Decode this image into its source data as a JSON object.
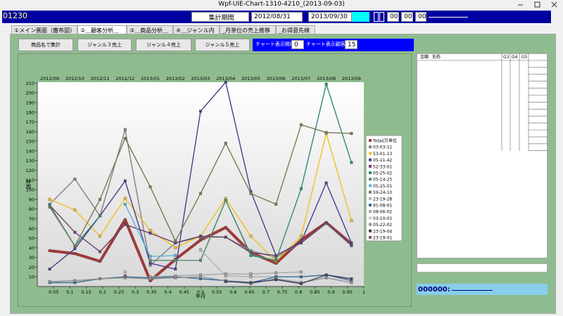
{
  "window": {
    "title": "Wpf-UIE-Chart-1310-4210_(2013-09-03)"
  },
  "header": {
    "code": "01230",
    "period_label": "集計期間",
    "start_date": "2012/08/31",
    "separator": "～",
    "end_date": "2013/09/30",
    "fields": [
      "00",
      "00",
      "00"
    ]
  },
  "tabs": [
    "①メイン画面（撒布図）",
    "②＿顧客分析＿",
    "③＿商品分析＿",
    "④＿ジャンル内訳",
    "_月単位の売上推移",
    "_お得意先検索"
  ],
  "buttons": [
    "商品名で集計",
    "ジャンル３売上",
    "ジャンル４売上",
    "ジャンル５売上"
  ],
  "chart_controls": {
    "start_label": "チャート表示開始",
    "start_value": "0",
    "count_label": "チャート表示顧客数",
    "count_value": "15"
  },
  "chart_data": {
    "type": "line",
    "x_label": "年月",
    "y_label": "金額",
    "x": [
      0.038,
      0.115,
      0.192,
      0.269,
      0.346,
      0.423,
      0.5,
      0.577,
      0.654,
      0.731,
      0.808,
      0.885,
      0.962
    ],
    "top_labels": [
      "2012/09",
      "2012/10",
      "2012/11",
      "2012/12",
      "2013/01",
      "2013/02",
      "2013/03",
      "2013/04",
      "2013/05",
      "2013/06",
      "2013/07",
      "2013/08",
      "2013/09"
    ],
    "xlim": [
      0,
      1
    ],
    "xticks": [
      0.05,
      0.1,
      0.15,
      0.2,
      0.25,
      0.3,
      0.35,
      0.4,
      0.45,
      0.5,
      0.55,
      0.6,
      0.65,
      0.7,
      0.75,
      0.8,
      0.85,
      0.9,
      0.95,
      1
    ],
    "ylim": [
      0,
      211
    ],
    "yticks": [
      10,
      20,
      30,
      40,
      50,
      60,
      70,
      80,
      90,
      100,
      110,
      120,
      130,
      140,
      150,
      160,
      170,
      180,
      190,
      200,
      210
    ],
    "series": [
      {
        "name": "Total/万単位",
        "color": "#9b3b3b",
        "values": [
          37,
          34,
          26,
          69,
          6,
          28,
          48,
          61,
          35,
          24,
          48,
          66,
          44
        ]
      },
      {
        "name": "03-03-11",
        "color": "#808080",
        "values": [
          85,
          111,
          73,
          162,
          22,
          45,
          51,
          51,
          37,
          30,
          45,
          65,
          42
        ]
      },
      {
        "name": "53-01-13",
        "color": "#f0c020",
        "values": [
          90,
          79,
          52,
          91,
          58,
          40,
          52,
          91,
          52,
          26,
          52,
          158,
          68
        ]
      },
      {
        "name": "05-11-42",
        "color": "#483d8b",
        "values": [
          18,
          39,
          73,
          109,
          24,
          18,
          181,
          211,
          98,
          32,
          46,
          107,
          45
        ]
      },
      {
        "name": "52-33-01",
        "color": "#6a3d6a",
        "values": [
          84,
          56,
          36,
          64,
          55,
          45,
          52,
          51,
          35,
          32,
          45,
          66,
          43
        ]
      },
      {
        "name": "05-25-02",
        "color": "#2e8b74",
        "values": [
          84,
          42,
          73,
          null,
          null,
          null,
          27,
          89,
          32,
          27,
          101,
          209,
          128
        ]
      },
      {
        "name": "05-14-25",
        "color": "#5b8a72",
        "values": [
          null,
          null,
          null,
          null,
          27,
          27,
          27,
          89,
          33,
          27,
          null,
          null,
          null
        ]
      },
      {
        "name": "05-25-01",
        "color": "#5ab4d6",
        "values": [
          null,
          null,
          null,
          85,
          31,
          32,
          null,
          null,
          null,
          null,
          null,
          null,
          null
        ]
      },
      {
        "name": "59-24-10",
        "color": "#7a7a55",
        "values": [
          82,
          42,
          90,
          153,
          103,
          47,
          96,
          148,
          96,
          85,
          167,
          159,
          158
        ]
      },
      {
        "name": "23-19-28",
        "color": "#b0b0b0",
        "values": [
          null,
          null,
          null,
          null,
          null,
          null,
          38,
          11,
          10,
          10,
          null,
          null,
          null
        ]
      },
      {
        "name": "91-08-01",
        "color": "#3b6e96",
        "values": [
          4,
          4,
          8,
          10,
          9,
          10,
          8,
          6,
          4,
          10,
          10,
          12,
          6
        ]
      },
      {
        "name": "08-06-02",
        "color": "#a8a8a8",
        "values": [
          null,
          null,
          null,
          null,
          10,
          11,
          12,
          13,
          13,
          14,
          15,
          null,
          null
        ]
      },
      {
        "name": "03-10-01",
        "color": "#c8c8c8",
        "values": [
          null,
          null,
          null,
          15,
          null,
          null,
          null,
          null,
          null,
          null,
          null,
          null,
          null
        ]
      },
      {
        "name": "05-22-02",
        "color": "#909090",
        "values": [
          5,
          6,
          8,
          9,
          8,
          9,
          10,
          6,
          3,
          8,
          4,
          9,
          4
        ]
      },
      {
        "name": "23-19-04",
        "color": "#404060",
        "values": [
          null,
          null,
          null,
          null,
          null,
          null,
          null,
          5,
          4,
          7,
          3,
          12,
          8
        ]
      },
      {
        "name": "23-19-01",
        "color": "#805070",
        "values": [
          null,
          null,
          null,
          11,
          null,
          null,
          null,
          null,
          null,
          null,
          null,
          null,
          null
        ]
      }
    ]
  },
  "grid": {
    "columns": [
      "金額",
      "名称",
      "G3",
      "G4",
      "G5"
    ]
  },
  "status": {
    "code": "000000:"
  }
}
